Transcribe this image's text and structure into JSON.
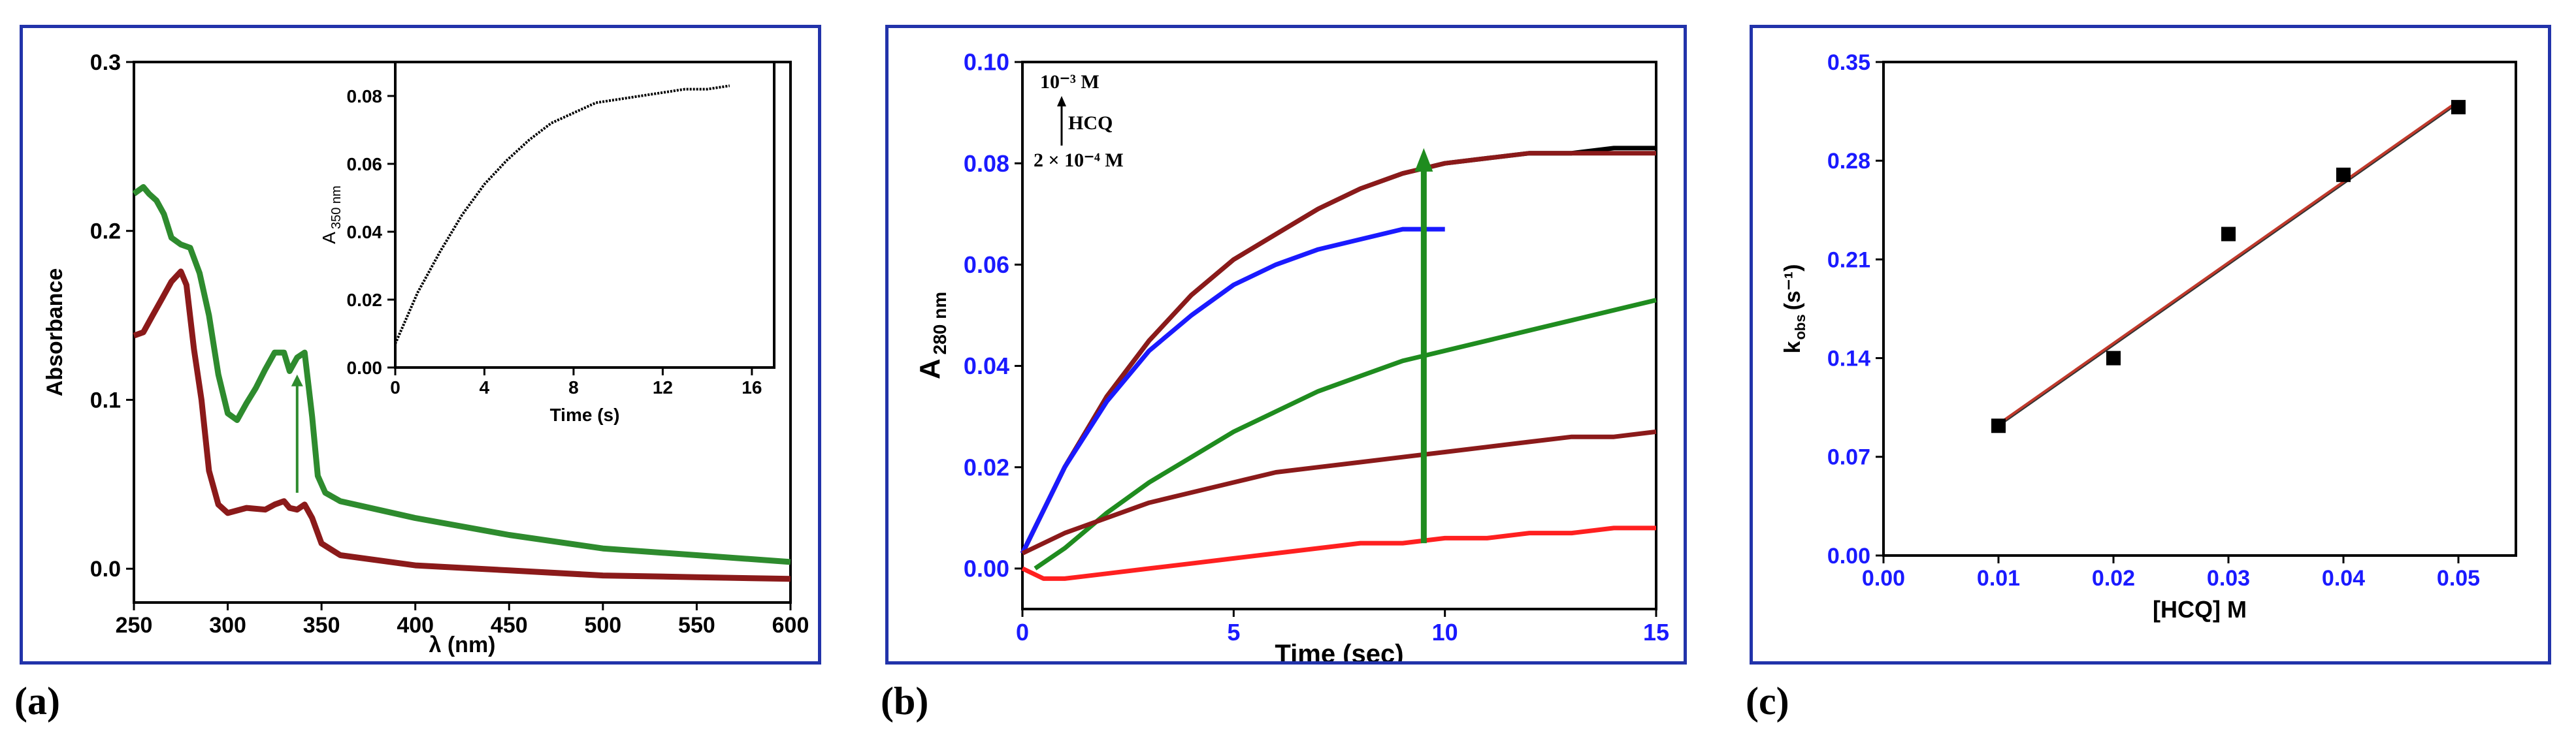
{
  "panel_labels": [
    "(a)",
    "(b)",
    "(c)"
  ],
  "chart_data": [
    {
      "panel": "(a)",
      "type": "line",
      "xlabel": "λ (nm)",
      "ylabel": "Absorbance",
      "xlim": [
        250,
        600
      ],
      "ylim": [
        -0.02,
        0.3
      ],
      "xticks": [
        "250",
        "300",
        "350",
        "400",
        "450",
        "500",
        "550",
        "600"
      ],
      "yticks": [
        "0.0",
        "0.1",
        "0.2",
        "0.3"
      ],
      "tick_values_x": [
        250,
        300,
        350,
        400,
        450,
        500,
        550,
        600
      ],
      "tick_values_y": [
        0.0,
        0.1,
        0.2,
        0.3
      ],
      "arrow_color": "#2e8b2e",
      "series": [
        {
          "color": "#2e8b2e",
          "x": [
            250,
            255,
            258,
            262,
            266,
            270,
            275,
            280,
            285,
            290,
            295,
            300,
            305,
            310,
            315,
            320,
            325,
            330,
            333,
            337,
            341,
            345,
            348,
            352,
            360,
            380,
            400,
            450,
            500,
            550,
            600
          ],
          "y": [
            0.222,
            0.226,
            0.222,
            0.218,
            0.21,
            0.196,
            0.192,
            0.19,
            0.175,
            0.15,
            0.115,
            0.092,
            0.088,
            0.098,
            0.107,
            0.118,
            0.128,
            0.128,
            0.117,
            0.125,
            0.128,
            0.09,
            0.055,
            0.045,
            0.04,
            0.035,
            0.03,
            0.02,
            0.012,
            0.008,
            0.004
          ]
        },
        {
          "color": "#8b1a1a",
          "x": [
            250,
            255,
            260,
            265,
            270,
            275,
            278,
            282,
            286,
            290,
            295,
            300,
            310,
            320,
            325,
            330,
            333,
            337,
            341,
            345,
            350,
            360,
            400,
            450,
            500,
            550,
            600
          ],
          "y": [
            0.138,
            0.14,
            0.15,
            0.16,
            0.17,
            0.176,
            0.168,
            0.13,
            0.1,
            0.058,
            0.038,
            0.033,
            0.036,
            0.035,
            0.038,
            0.04,
            0.036,
            0.035,
            0.038,
            0.03,
            0.015,
            0.008,
            0.002,
            -0.001,
            -0.004,
            -0.005,
            -0.006
          ]
        }
      ],
      "inset": {
        "type": "line",
        "xlabel": "Time (s)",
        "ylabel_main": "A",
        "ylabel_sub": "350 nm",
        "xlim": [
          0,
          17
        ],
        "ylim": [
          0,
          0.09
        ],
        "xticks": [
          "0",
          "4",
          "8",
          "12",
          "16"
        ],
        "yticks": [
          "0.00",
          "0.02",
          "0.04",
          "0.06",
          "0.08"
        ],
        "tick_values_x": [
          0,
          4,
          8,
          12,
          16
        ],
        "tick_values_y": [
          0.0,
          0.02,
          0.04,
          0.06,
          0.08
        ],
        "color": "#000000",
        "x": [
          0,
          1,
          2,
          3,
          4,
          5,
          6,
          7,
          8,
          9,
          10,
          11,
          12,
          13,
          14,
          15
        ],
        "y": [
          0.007,
          0.022,
          0.034,
          0.045,
          0.054,
          0.061,
          0.067,
          0.072,
          0.075,
          0.078,
          0.079,
          0.08,
          0.081,
          0.082,
          0.082,
          0.083
        ]
      }
    },
    {
      "panel": "(b)",
      "type": "line",
      "xlabel": "Time (sec)",
      "ylabel_main": "A",
      "ylabel_sub": "280 nm",
      "xlim": [
        0,
        15
      ],
      "ylim": [
        -0.008,
        0.1
      ],
      "xticks": [
        "0",
        "5",
        "10",
        "15"
      ],
      "yticks": [
        "0.00",
        "0.02",
        "0.04",
        "0.06",
        "0.08",
        "0.10"
      ],
      "tick_values_x": [
        0,
        5,
        10,
        15
      ],
      "tick_values_y": [
        0.0,
        0.02,
        0.04,
        0.06,
        0.08,
        0.1
      ],
      "tick_color": "#1a1aff",
      "arrow_color": "#1f8c1f",
      "arrow_x": 9.5,
      "arrow_y": [
        0.005,
        0.083
      ],
      "annotation": {
        "top": "10⁻³ M",
        "middle": "HCQ",
        "bottom": "2 × 10⁻⁴ M"
      },
      "series": [
        {
          "color": "#000000",
          "x": [
            0,
            1,
            2,
            3,
            4,
            5,
            6,
            7,
            8,
            9,
            10,
            11,
            12,
            13,
            14,
            15
          ],
          "y": [
            0.003,
            0.02,
            0.034,
            0.045,
            0.054,
            0.061,
            0.066,
            0.071,
            0.075,
            0.078,
            0.08,
            0.081,
            0.082,
            0.082,
            0.083,
            0.083
          ]
        },
        {
          "color": "#8b1a1a",
          "x": [
            0,
            1,
            2,
            3,
            4,
            5,
            6,
            7,
            8,
            9,
            10,
            11,
            12,
            13,
            14,
            15
          ],
          "y": [
            0.003,
            0.02,
            0.034,
            0.045,
            0.054,
            0.061,
            0.066,
            0.071,
            0.075,
            0.078,
            0.08,
            0.081,
            0.082,
            0.082,
            0.082,
            0.082
          ]
        },
        {
          "color": "#1a1aff",
          "x": [
            0,
            1,
            2,
            3,
            4,
            5,
            6,
            7,
            8,
            9,
            10
          ],
          "y": [
            0.003,
            0.02,
            0.033,
            0.043,
            0.05,
            0.056,
            0.06,
            0.063,
            0.065,
            0.067,
            0.067
          ]
        },
        {
          "color": "#1f8c1f",
          "x": [
            0.3,
            1,
            2,
            3,
            4,
            5,
            6,
            7,
            8,
            9,
            10,
            11,
            12,
            13,
            14,
            15
          ],
          "y": [
            0.0,
            0.004,
            0.011,
            0.017,
            0.022,
            0.027,
            0.031,
            0.035,
            0.038,
            0.041,
            0.043,
            0.045,
            0.047,
            0.049,
            0.051,
            0.053
          ]
        },
        {
          "color": "#8b1a1a",
          "x": [
            0,
            1,
            2,
            3,
            4,
            5,
            6,
            7,
            8,
            9,
            10,
            11,
            12,
            13,
            14,
            15
          ],
          "y": [
            0.003,
            0.007,
            0.01,
            0.013,
            0.015,
            0.017,
            0.019,
            0.02,
            0.021,
            0.022,
            0.023,
            0.024,
            0.025,
            0.026,
            0.026,
            0.027
          ]
        },
        {
          "color": "#ff2020",
          "x": [
            0,
            0.5,
            1,
            2,
            3,
            4,
            5,
            6,
            7,
            8,
            9,
            10,
            11,
            12,
            13,
            14,
            15
          ],
          "y": [
            0.0,
            -0.002,
            -0.002,
            -0.001,
            0.0,
            0.001,
            0.002,
            0.003,
            0.004,
            0.005,
            0.005,
            0.006,
            0.006,
            0.007,
            0.007,
            0.008,
            0.008
          ]
        }
      ]
    },
    {
      "panel": "(c)",
      "type": "scatter",
      "xlabel": "[HCQ] M",
      "ylabel_main": "k",
      "ylabel_sub": "obs",
      "ylabel_unit": "(s⁻¹)",
      "xlim": [
        0.0,
        0.055
      ],
      "ylim": [
        0.0,
        0.35
      ],
      "xticks": [
        "0.00",
        "0.01",
        "0.02",
        "0.03",
        "0.04",
        "0.05"
      ],
      "yticks": [
        "0.00",
        "0.07",
        "0.14",
        "0.21",
        "0.28",
        "0.35"
      ],
      "tick_values_x": [
        0.0,
        0.01,
        0.02,
        0.03,
        0.04,
        0.05
      ],
      "tick_values_y": [
        0.0,
        0.07,
        0.14,
        0.21,
        0.28,
        0.35
      ],
      "tick_color": "#1a1aff",
      "points": {
        "x": [
          0.01,
          0.02,
          0.03,
          0.04,
          0.05
        ],
        "y": [
          0.092,
          0.14,
          0.228,
          0.27,
          0.318
        ]
      },
      "fit": {
        "color": "#c0392b",
        "x": [
          0.01,
          0.05
        ],
        "y": [
          0.093,
          0.322
        ]
      }
    }
  ]
}
